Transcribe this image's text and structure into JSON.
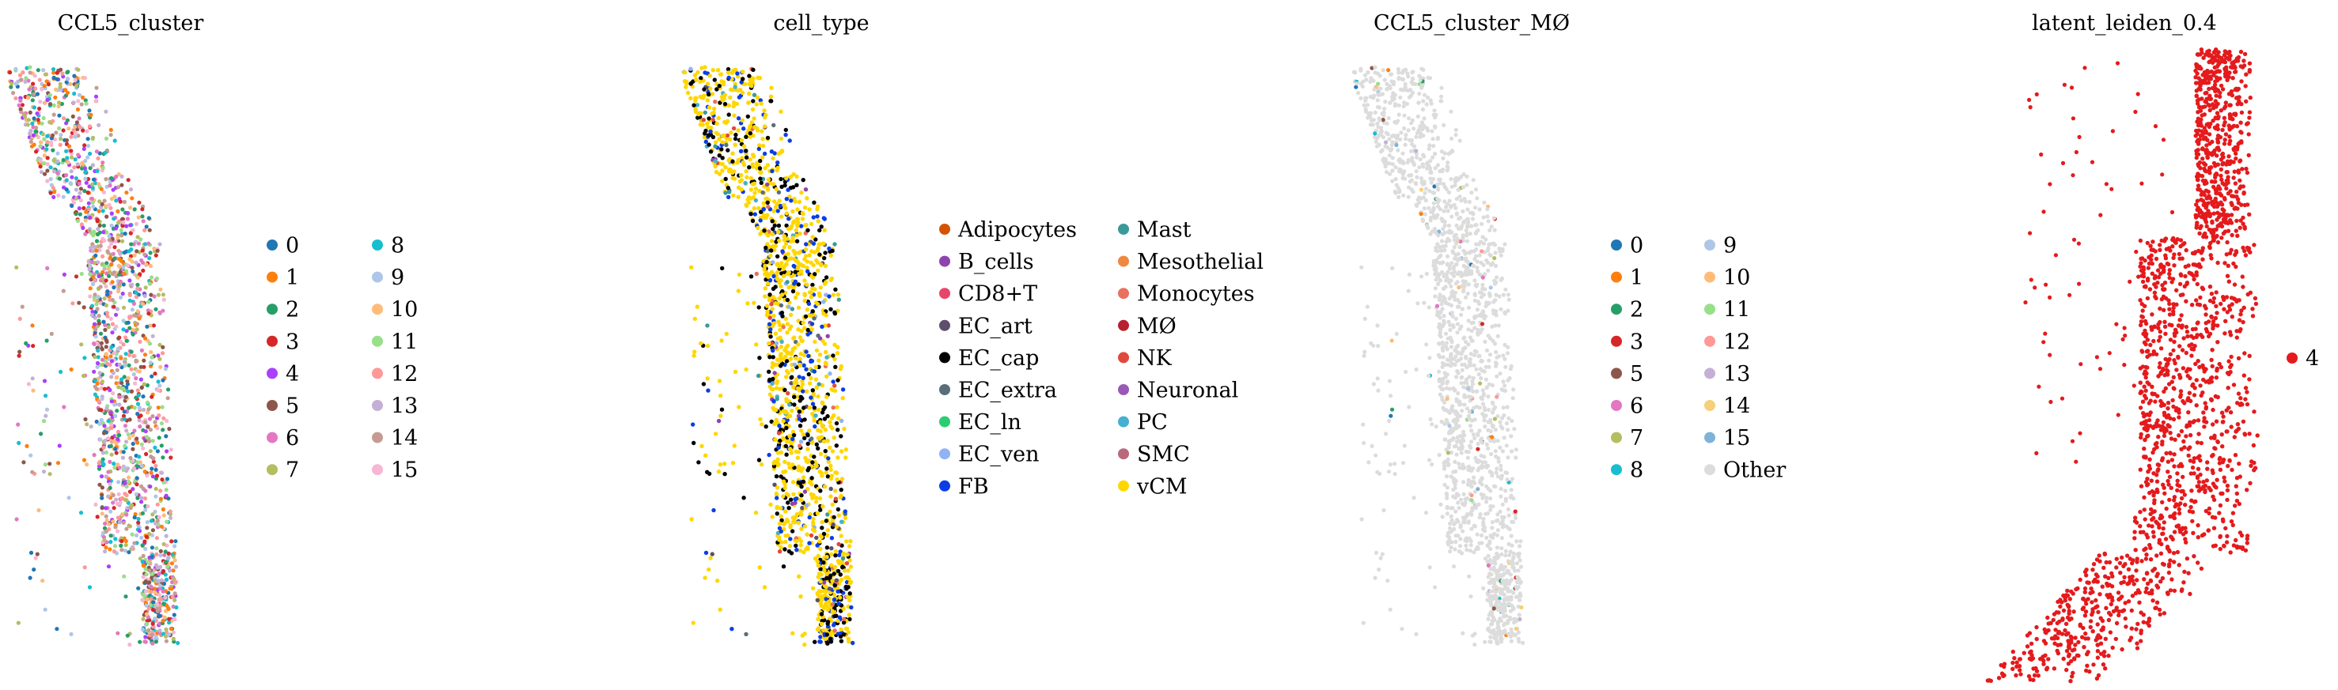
{
  "chart_data": [
    {
      "type": "scatter",
      "title": "CCL5_cluster",
      "legend_placement": "right",
      "grid": false,
      "categories": [
        {
          "label": "0",
          "color": "#1f77b4"
        },
        {
          "label": "1",
          "color": "#ff7f0e"
        },
        {
          "label": "2",
          "color": "#279e68"
        },
        {
          "label": "3",
          "color": "#d62728"
        },
        {
          "label": "4",
          "color": "#aa40fc"
        },
        {
          "label": "5",
          "color": "#8c564b"
        },
        {
          "label": "6",
          "color": "#e377c2"
        },
        {
          "label": "7",
          "color": "#b5bd61"
        },
        {
          "label": "8",
          "color": "#17becf"
        },
        {
          "label": "9",
          "color": "#aec7e8"
        },
        {
          "label": "10",
          "color": "#ffbb78"
        },
        {
          "label": "11",
          "color": "#98df8a"
        },
        {
          "label": "12",
          "color": "#ff9896"
        },
        {
          "label": "13",
          "color": "#c5b0d5"
        },
        {
          "label": "14",
          "color": "#c49c94"
        },
        {
          "label": "15",
          "color": "#f7b6d2"
        }
      ]
    },
    {
      "type": "scatter",
      "title": "cell_type",
      "legend_placement": "right",
      "grid": false,
      "dominant_category": "vCM",
      "categories": [
        {
          "label": "Adipocytes",
          "color": "#d35400"
        },
        {
          "label": "B_cells",
          "color": "#8e44ad"
        },
        {
          "label": "CD8+T",
          "color": "#e8456b"
        },
        {
          "label": "EC_art",
          "color": "#5d4e6d"
        },
        {
          "label": "EC_cap",
          "color": "#000000"
        },
        {
          "label": "EC_extra",
          "color": "#5a6e7a"
        },
        {
          "label": "EC_ln",
          "color": "#2ecc71"
        },
        {
          "label": "EC_ven",
          "color": "#8fb3f5"
        },
        {
          "label": "FB",
          "color": "#0b3de6"
        },
        {
          "label": "Mast",
          "color": "#3a9a9a"
        },
        {
          "label": "Mesothelial",
          "color": "#f0883e"
        },
        {
          "label": "Monocytes",
          "color": "#e8705f"
        },
        {
          "label": "MØ",
          "color": "#b7202e"
        },
        {
          "label": "NK",
          "color": "#e04a3c"
        },
        {
          "label": "Neuronal",
          "color": "#9b59b6"
        },
        {
          "label": "PC",
          "color": "#45b0cf"
        },
        {
          "label": "SMC",
          "color": "#b86a7c"
        },
        {
          "label": "vCM",
          "color": "#ffd700"
        }
      ]
    },
    {
      "type": "scatter",
      "title": "CCL5_cluster_MØ",
      "legend_placement": "right",
      "grid": false,
      "dominant_category": "Other",
      "categories": [
        {
          "label": "0",
          "color": "#1f77b4"
        },
        {
          "label": "1",
          "color": "#ff7f0e"
        },
        {
          "label": "2",
          "color": "#279e68"
        },
        {
          "label": "3",
          "color": "#d62728"
        },
        {
          "label": "5",
          "color": "#8c564b"
        },
        {
          "label": "6",
          "color": "#e377c2"
        },
        {
          "label": "7",
          "color": "#b5bd61"
        },
        {
          "label": "8",
          "color": "#17becf"
        },
        {
          "label": "9",
          "color": "#aec7e8"
        },
        {
          "label": "10",
          "color": "#ffbb78"
        },
        {
          "label": "11",
          "color": "#98df8a"
        },
        {
          "label": "12",
          "color": "#ff9896"
        },
        {
          "label": "13",
          "color": "#c5b0d5"
        },
        {
          "label": "14",
          "color": "#f7cf7a"
        },
        {
          "label": "15",
          "color": "#7fb2d9"
        },
        {
          "label": "Other",
          "color": "#dcdcdc"
        }
      ]
    },
    {
      "type": "scatter",
      "title": "latent_leiden_0.4",
      "legend_placement": "right",
      "grid": false,
      "categories": [
        {
          "label": "4",
          "color": "#e41a1c"
        }
      ]
    }
  ]
}
